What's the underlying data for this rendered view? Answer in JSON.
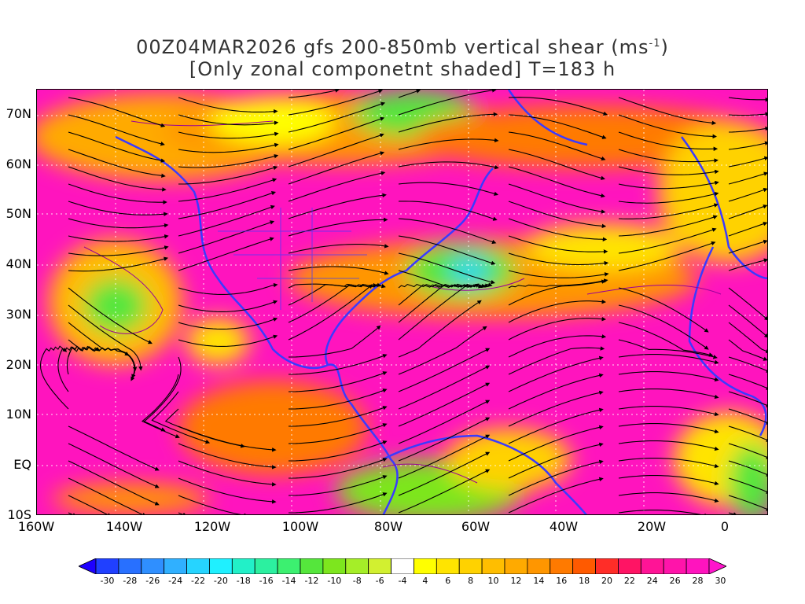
{
  "title": {
    "line1_prefix": "00Z04MAR2026 gfs 200-850mb vertical shear (ms",
    "line1_sup": "-1",
    "line1_suffix": ")",
    "line2": "[Only zonal componetnt shaded] T=183 h"
  },
  "map": {
    "lat_labels": [
      "70N",
      "60N",
      "50N",
      "40N",
      "30N",
      "20N",
      "10N",
      "EQ",
      "10S"
    ],
    "lon_labels": [
      "160W",
      "140W",
      "120W",
      "100W",
      "80W",
      "60W",
      "40W",
      "20W",
      "0"
    ],
    "coastline_color": "#3a3aff",
    "contour_color": "#990099",
    "streamline_color": "#000000"
  },
  "colorbar": {
    "labels": [
      "-30",
      "-28",
      "-26",
      "-24",
      "-22",
      "-20",
      "-18",
      "-16",
      "-14",
      "-12",
      "-10",
      "-8",
      "-6",
      "-4",
      "4",
      "6",
      "8",
      "10",
      "12",
      "14",
      "16",
      "18",
      "20",
      "22",
      "24",
      "26",
      "28",
      "30"
    ],
    "colors": [
      "#1e00ff",
      "#2040ff",
      "#2870ff",
      "#2f8fff",
      "#30b0ff",
      "#26d4ff",
      "#1ff0ff",
      "#22f0c8",
      "#2cf0a0",
      "#3cf070",
      "#55e63c",
      "#7de61e",
      "#a5ee28",
      "#d2f030",
      "#ffffff",
      "#ffff00",
      "#ffe400",
      "#ffd200",
      "#ffbe00",
      "#ffaa00",
      "#ff9600",
      "#ff7a00",
      "#ff5a00",
      "#ff2d28",
      "#ff1464",
      "#ff1496",
      "#ff14aa",
      "#ff14be",
      "#ff14cc"
    ]
  }
}
